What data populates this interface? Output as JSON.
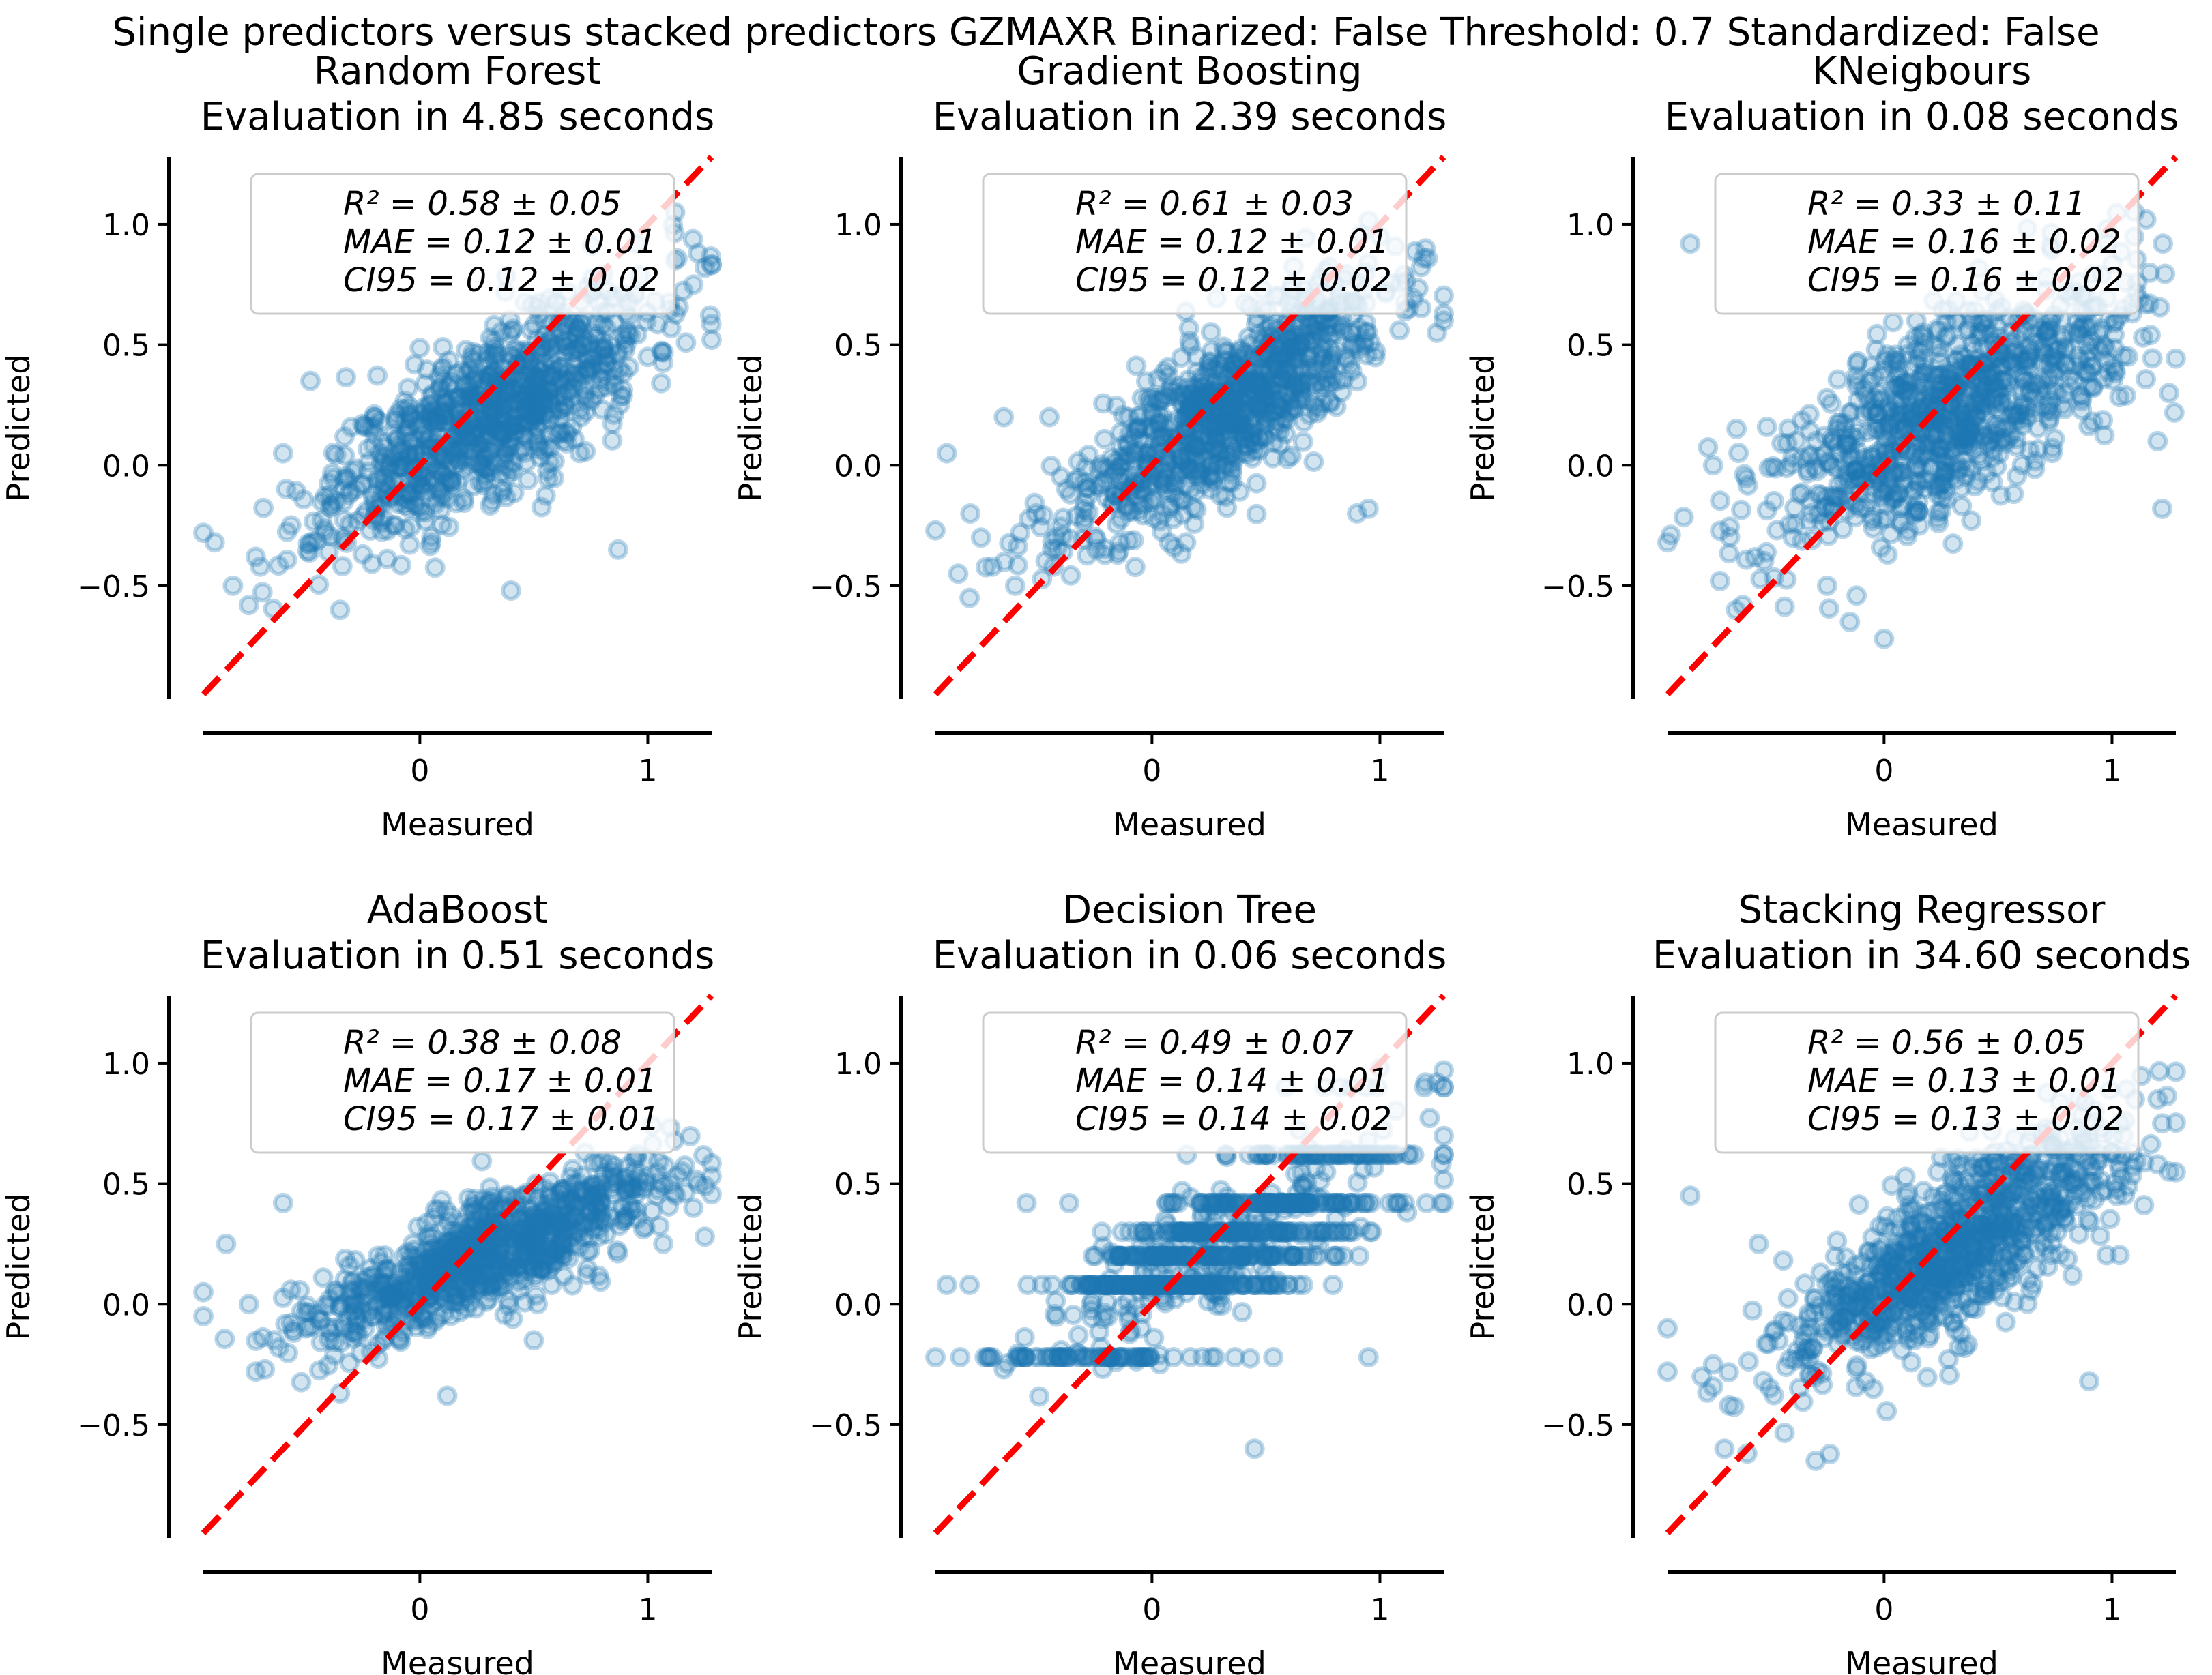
{
  "suptitle": "Single predictors versus stacked predictors GZMAXR Binarized: False Threshold: 0.7 Standardized: False",
  "colors": {
    "points": "#1f77b4",
    "identity_line": "#ff0000",
    "axis": "#000000"
  },
  "chart_data": [
    {
      "type": "scatter",
      "title_line1": "Random Forest",
      "title_line2": "Evaluation in 4.85 seconds",
      "xlabel": "Measured",
      "ylabel": "Predicted",
      "xticks": [
        "0",
        "1"
      ],
      "yticks": [
        "−0.5",
        "0.0",
        "0.5",
        "1.0"
      ],
      "xlim": [
        -0.95,
        1.28
      ],
      "ylim": [
        -0.97,
        1.28
      ],
      "metrics": [
        "R² = 0.58 ± 0.05",
        "MAE = 0.12 ± 0.01",
        "CI95 = 0.12 ± 0.02"
      ],
      "pattern": {
        "slope": 0.55,
        "intercept": 0.05,
        "noise": 0.17,
        "xcenter": 0.3,
        "xspread": 0.35,
        "seed": 11
      },
      "outliers": [
        [
          -0.95,
          -0.28
        ],
        [
          -0.9,
          -0.32
        ],
        [
          -0.72,
          -0.38
        ],
        [
          -0.7,
          -0.42
        ],
        [
          -0.75,
          -0.58
        ],
        [
          -0.82,
          -0.5
        ],
        [
          -0.6,
          0.05
        ],
        [
          -0.48,
          0.35
        ],
        [
          -0.35,
          -0.6
        ],
        [
          0.05,
          -0.32
        ],
        [
          0.4,
          -0.52
        ],
        [
          0.87,
          -0.35
        ],
        [
          1.22,
          0.88
        ],
        [
          1.12,
          1.05
        ],
        [
          1.25,
          0.82
        ],
        [
          1.2,
          0.75
        ],
        [
          1.0,
          0.45
        ]
      ]
    },
    {
      "type": "scatter",
      "title_line1": "Gradient Boosting",
      "title_line2": "Evaluation in 2.39 seconds",
      "xlabel": "Measured",
      "ylabel": "Predicted",
      "xticks": [
        "0",
        "1"
      ],
      "yticks": [
        "−0.5",
        "0.0",
        "0.5",
        "1.0"
      ],
      "xlim": [
        -0.95,
        1.28
      ],
      "ylim": [
        -0.97,
        1.28
      ],
      "metrics": [
        "R² = 0.61 ± 0.03",
        "MAE = 0.12 ± 0.01",
        "CI95 = 0.12 ± 0.02"
      ],
      "pattern": {
        "slope": 0.6,
        "intercept": 0.03,
        "noise": 0.16,
        "xcenter": 0.3,
        "xspread": 0.35,
        "seed": 23
      },
      "outliers": [
        [
          -0.95,
          -0.27
        ],
        [
          -0.75,
          -0.3
        ],
        [
          -0.85,
          -0.45
        ],
        [
          -0.8,
          -0.55
        ],
        [
          -0.7,
          -0.42
        ],
        [
          -0.6,
          -0.5
        ],
        [
          -0.9,
          0.05
        ],
        [
          -0.65,
          0.2
        ],
        [
          -0.45,
          0.2
        ],
        [
          0.15,
          -0.32
        ],
        [
          0.9,
          -0.2
        ],
        [
          0.95,
          -0.18
        ],
        [
          1.25,
          0.55
        ],
        [
          1.2,
          0.9
        ],
        [
          1.0,
          0.95
        ],
        [
          1.28,
          0.6
        ]
      ]
    },
    {
      "type": "scatter",
      "title_line1": "KNeigbours",
      "title_line2": "Evaluation in 0.08 seconds",
      "xlabel": "Measured",
      "ylabel": "Predicted",
      "xticks": [
        "0",
        "1"
      ],
      "yticks": [
        "−0.5",
        "0.0",
        "0.5",
        "1.0"
      ],
      "xlim": [
        -0.95,
        1.28
      ],
      "ylim": [
        -0.97,
        1.28
      ],
      "metrics": [
        "R² = 0.33 ± 0.11",
        "MAE = 0.16 ± 0.02",
        "CI95 = 0.16 ± 0.02"
      ],
      "pattern": {
        "slope": 0.45,
        "intercept": 0.1,
        "noise": 0.2,
        "xcenter": 0.3,
        "xspread": 0.38,
        "seed": 37
      },
      "outliers": [
        [
          -0.85,
          0.92
        ],
        [
          -0.95,
          -0.32
        ],
        [
          -0.72,
          -0.48
        ],
        [
          -0.65,
          -0.6
        ],
        [
          -0.62,
          -0.58
        ],
        [
          -0.75,
          0.0
        ],
        [
          -0.4,
          -0.3
        ],
        [
          -0.15,
          -0.65
        ],
        [
          0.0,
          -0.72
        ],
        [
          -0.25,
          -0.5
        ],
        [
          1.25,
          0.3
        ],
        [
          1.22,
          -0.18
        ],
        [
          1.2,
          0.1
        ],
        [
          1.1,
          1.05
        ],
        [
          1.15,
          1.02
        ],
        [
          1.05,
          0.65
        ]
      ]
    },
    {
      "type": "scatter",
      "title_line1": "AdaBoost",
      "title_line2": "Evaluation in 0.51 seconds",
      "xlabel": "Measured",
      "ylabel": "Predicted",
      "xticks": [
        "0",
        "1"
      ],
      "yticks": [
        "−0.5",
        "0.0",
        "0.5",
        "1.0"
      ],
      "xlim": [
        -0.95,
        1.28
      ],
      "ylim": [
        -0.97,
        1.28
      ],
      "metrics": [
        "R² = 0.38 ± 0.08",
        "MAE = 0.17 ± 0.01",
        "CI95 = 0.17 ± 0.01"
      ],
      "pattern": {
        "slope": 0.38,
        "intercept": 0.1,
        "noise": 0.11,
        "xcenter": 0.3,
        "xspread": 0.38,
        "seed": 41
      },
      "outliers": [
        [
          -0.95,
          0.05
        ],
        [
          -0.95,
          -0.05
        ],
        [
          -0.85,
          0.25
        ],
        [
          -0.75,
          0.0
        ],
        [
          -0.72,
          -0.28
        ],
        [
          -0.68,
          -0.27
        ],
        [
          -0.6,
          0.42
        ],
        [
          -0.5,
          -0.1
        ],
        [
          -0.35,
          -0.37
        ],
        [
          0.12,
          -0.38
        ],
        [
          0.5,
          -0.15
        ],
        [
          1.2,
          0.4
        ],
        [
          1.25,
          0.28
        ],
        [
          1.22,
          0.5
        ],
        [
          1.15,
          0.55
        ],
        [
          1.0,
          0.6
        ]
      ]
    },
    {
      "type": "scatter",
      "title_line1": "Decision Tree",
      "title_line2": "Evaluation in 0.06 seconds",
      "xlabel": "Measured",
      "ylabel": "Predicted",
      "xticks": [
        "0",
        "1"
      ],
      "yticks": [
        "−0.5",
        "0.0",
        "0.5",
        "1.0"
      ],
      "xlim": [
        -0.95,
        1.28
      ],
      "ylim": [
        -0.97,
        1.28
      ],
      "metrics": [
        "R² = 0.49 ± 0.07",
        "MAE = 0.14 ± 0.01",
        "CI95 = 0.14 ± 0.02"
      ],
      "pattern": {
        "slope": 0.5,
        "intercept": 0.08,
        "noise": 0.15,
        "xcenter": 0.3,
        "xspread": 0.4,
        "seed": 53,
        "levels": [
          -0.22,
          0.08,
          0.2,
          0.3,
          0.42,
          0.62,
          0.9
        ]
      },
      "outliers": [
        [
          -0.95,
          -0.22
        ],
        [
          -0.9,
          0.08
        ],
        [
          -0.8,
          0.08
        ],
        [
          -0.7,
          -0.22
        ],
        [
          -0.55,
          0.42
        ],
        [
          0.45,
          -0.6
        ],
        [
          1.2,
          0.92
        ],
        [
          1.25,
          0.92
        ],
        [
          1.15,
          0.62
        ],
        [
          1.0,
          0.98
        ],
        [
          0.95,
          -0.22
        ]
      ]
    },
    {
      "type": "scatter",
      "title_line1": "Stacking Regressor",
      "title_line2": "Evaluation in 34.60 seconds",
      "xlabel": "Measured",
      "ylabel": "Predicted",
      "xticks": [
        "0",
        "1"
      ],
      "yticks": [
        "−0.5",
        "0.0",
        "0.5",
        "1.0"
      ],
      "xlim": [
        -0.95,
        1.28
      ],
      "ylim": [
        -0.97,
        1.28
      ],
      "metrics": [
        "R² = 0.56 ± 0.05",
        "MAE = 0.13 ± 0.01",
        "CI95 = 0.13 ± 0.02"
      ],
      "pattern": {
        "slope": 0.55,
        "intercept": 0.05,
        "noise": 0.16,
        "xcenter": 0.3,
        "xspread": 0.36,
        "seed": 67
      },
      "outliers": [
        [
          -0.95,
          -0.1
        ],
        [
          -0.95,
          -0.28
        ],
        [
          -0.85,
          0.45
        ],
        [
          -0.8,
          -0.3
        ],
        [
          -0.75,
          -0.25
        ],
        [
          -0.7,
          -0.6
        ],
        [
          -0.6,
          -0.62
        ],
        [
          -0.3,
          -0.65
        ],
        [
          -0.55,
          0.25
        ],
        [
          0.9,
          -0.32
        ],
        [
          1.25,
          0.55
        ],
        [
          1.2,
          0.85
        ],
        [
          1.1,
          0.85
        ],
        [
          1.22,
          0.75
        ],
        [
          1.05,
          0.7
        ],
        [
          1.2,
          0.58
        ]
      ]
    }
  ]
}
